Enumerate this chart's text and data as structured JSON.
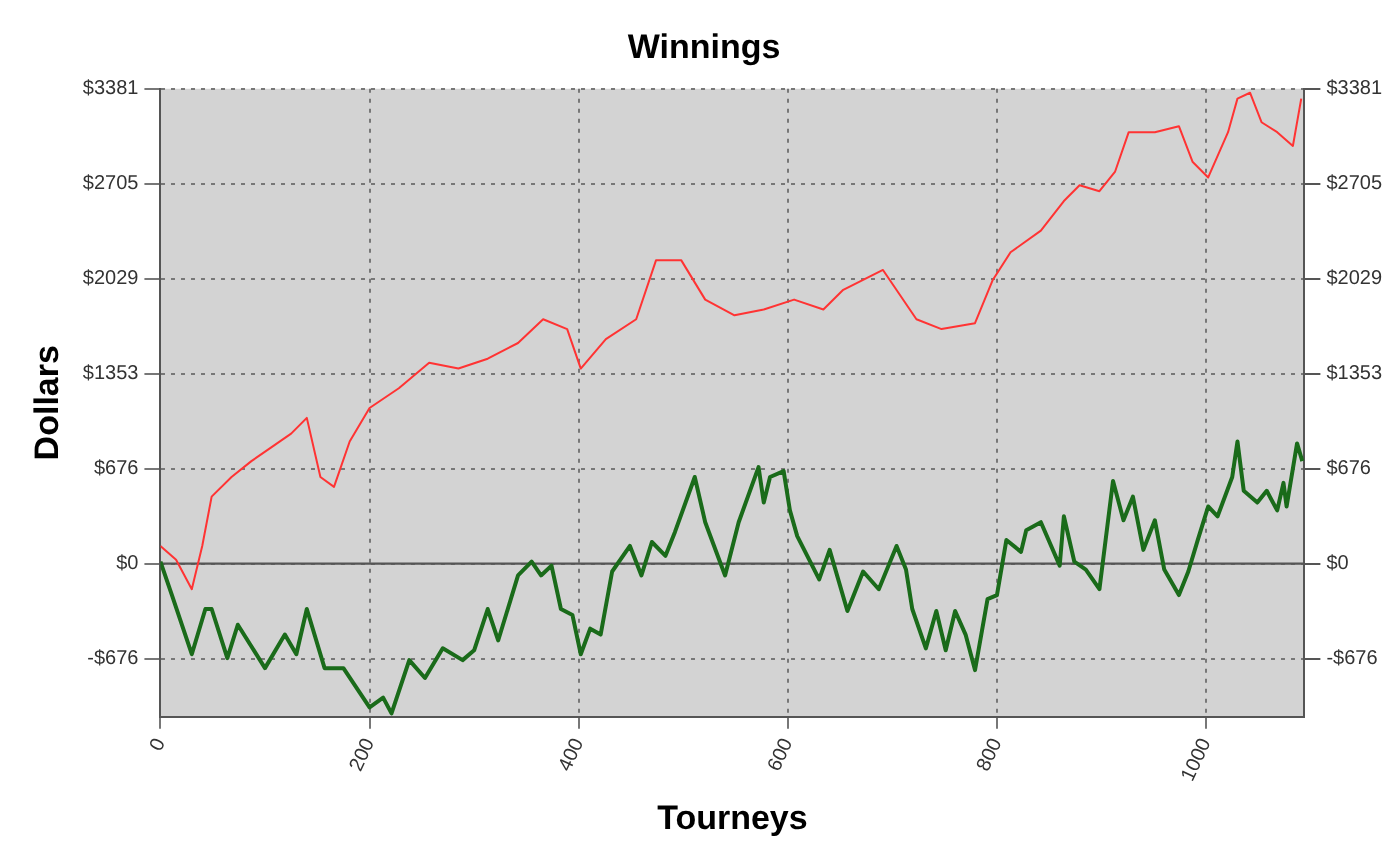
{
  "chart_data": {
    "type": "line",
    "title": "Winnings",
    "xlabel": "Tourneys",
    "ylabel": "Dollars",
    "xlim": [
      0,
      1094
    ],
    "xticks": [
      0,
      200,
      400,
      600,
      800,
      1000
    ],
    "ylim": [
      -1090,
      3381
    ],
    "yticks": [
      {
        "value": -676,
        "label": "-$676"
      },
      {
        "value": 0,
        "label": "$0"
      },
      {
        "value": 676,
        "label": "$676"
      },
      {
        "value": 1353,
        "label": "$1353"
      },
      {
        "value": 2029,
        "label": "$2029"
      },
      {
        "value": 2705,
        "label": "$2705"
      },
      {
        "value": 3381,
        "label": "$3381"
      }
    ],
    "y2lim": [
      -1090,
      3381
    ],
    "y2ticks": [
      {
        "value": -676,
        "label": "-$676"
      },
      {
        "value": 0,
        "label": "$0"
      },
      {
        "value": 676,
        "label": "$676"
      },
      {
        "value": 1353,
        "label": "$1353"
      },
      {
        "value": 2029,
        "label": "$2029"
      },
      {
        "value": 2705,
        "label": "$2705"
      },
      {
        "value": 3381,
        "label": "$3381"
      }
    ],
    "grid": true,
    "marker": "none",
    "ref_lines": [
      {
        "axis": "y",
        "value": 0,
        "color": "#555555"
      }
    ],
    "series": [
      {
        "color": "#ff3333",
        "x": [
          0,
          15,
          30,
          40,
          49,
          68,
          87,
          106,
          125,
          140,
          153,
          166,
          181,
          200,
          228,
          257,
          285,
          313,
          342,
          366,
          389,
          402,
          426,
          455,
          474,
          498,
          521,
          549,
          577,
          606,
          634,
          653,
          691,
          723,
          747,
          779,
          796,
          813,
          842,
          864,
          879,
          898,
          913,
          926,
          951,
          974,
          987,
          1002,
          1021,
          1030,
          1042,
          1053,
          1068,
          1083,
          1091
        ],
        "values": [
          126,
          28,
          -182,
          126,
          477,
          617,
          730,
          828,
          926,
          1038,
          617,
          547,
          870,
          1108,
          1249,
          1431,
          1389,
          1459,
          1571,
          1740,
          1670,
          1389,
          1599,
          1740,
          2161,
          2161,
          1880,
          1768,
          1810,
          1880,
          1810,
          1950,
          2091,
          1740,
          1670,
          1712,
          2020,
          2217,
          2371,
          2582,
          2694,
          2652,
          2792,
          3072,
          3072,
          3115,
          2862,
          2750,
          3072,
          3311,
          3353,
          3143,
          3072,
          2974,
          3311
        ]
      },
      {
        "color": "#1a6b1a",
        "x": [
          0,
          11,
          30,
          43,
          49,
          64,
          74,
          100,
          119,
          130,
          140,
          157,
          175,
          200,
          213,
          221,
          238,
          253,
          270,
          289,
          300,
          313,
          323,
          342,
          355,
          364,
          374,
          383,
          394,
          402,
          411,
          421,
          432,
          449,
          460,
          470,
          483,
          492,
          511,
          521,
          540,
          553,
          572,
          577,
          583,
          596,
          602,
          609,
          630,
          640,
          657,
          672,
          687,
          704,
          713,
          719,
          732,
          742,
          751,
          760,
          770,
          779,
          791,
          800,
          809,
          823,
          828,
          842,
          860,
          864,
          874,
          885,
          898,
          911,
          921,
          930,
          940,
          951,
          960,
          974,
          983,
          992,
          1002,
          1011,
          1025,
          1030,
          1036,
          1049,
          1058,
          1068,
          1074,
          1077,
          1087,
          1092
        ],
        "values": [
          14,
          -224,
          -645,
          -323,
          -323,
          -673,
          -435,
          -744,
          -505,
          -645,
          -323,
          -744,
          -744,
          -1024,
          -954,
          -1066,
          -687,
          -814,
          -603,
          -687,
          -617,
          -323,
          -547,
          -84,
          14,
          -84,
          -14,
          -323,
          -365,
          -645,
          -463,
          -505,
          -56,
          126,
          -84,
          154,
          56,
          224,
          617,
          295,
          -84,
          295,
          687,
          435,
          617,
          659,
          379,
          196,
          -112,
          98,
          -337,
          -56,
          -182,
          126,
          -42,
          -323,
          -603,
          -337,
          -617,
          -337,
          -505,
          -758,
          -253,
          -224,
          168,
          84,
          238,
          295,
          -14,
          337,
          14,
          -42,
          -182,
          589,
          309,
          477,
          98,
          309,
          -42,
          -224,
          -56,
          168,
          407,
          337,
          617,
          870,
          519,
          435,
          519,
          379,
          575,
          407,
          856,
          730
        ]
      }
    ]
  }
}
